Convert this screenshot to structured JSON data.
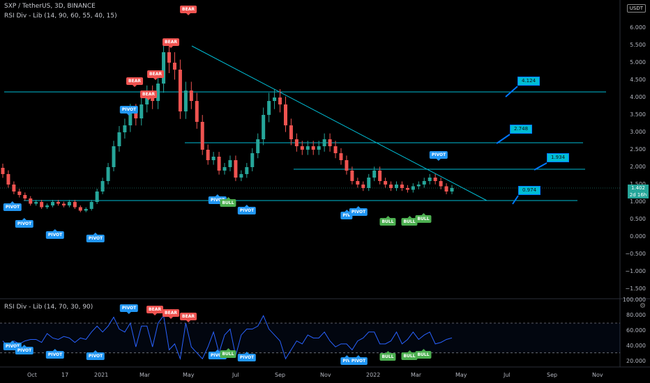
{
  "header": {
    "symbol_line": "SXP / TetherUS, 3D, BINANCE",
    "indicator_line": "RSI Div - Lib (14, 90, 60, 55, 40, 15)"
  },
  "rsi_header": "RSI Div - Lib (14, 70, 30, 90)",
  "currency_badge": "USDT",
  "price_axis": [
    "6.000",
    "5.500",
    "5.000",
    "4.500",
    "4.000",
    "3.500",
    "3.000",
    "2.500",
    "2.000",
    "1.500",
    "1.000",
    "0.500",
    "0.000",
    "−0.500",
    "−1.000",
    "−1.500"
  ],
  "rsi_axis": [
    "100.000",
    "80.000",
    "60.000",
    "40.000",
    "20.000"
  ],
  "time_axis": [
    "Oct",
    "17",
    "2021",
    "Mar",
    "May",
    "Jul",
    "Sep",
    "Nov",
    "2022",
    "Mar",
    "May",
    "Jul",
    "Sep",
    "Nov"
  ],
  "current_price": {
    "value": "1.402",
    "countdown": "2d 16h"
  },
  "level_labels": [
    "4.124",
    "2.748",
    "1.934",
    "0.974"
  ],
  "signal_labels": {
    "bear": "BEAR",
    "bull": "BULL",
    "pivot": "PIVOT",
    "pivot_short": "PIV"
  },
  "colors": {
    "bg": "#000000",
    "up": "#26a69a",
    "down": "#ef5350",
    "level": "#00bcd4",
    "rsi": "#2962ff"
  },
  "chart_data": {
    "type": "candlestick",
    "title": "SXP / TetherUS, 3D, BINANCE",
    "x_ticks": [
      "Oct",
      "17",
      "2021",
      "Mar",
      "May",
      "Jul",
      "Sep",
      "Nov",
      "2022",
      "Mar",
      "May",
      "Jul",
      "Sep",
      "Nov"
    ],
    "ylim": [
      -1.7,
      6.4
    ],
    "close_approx": [
      1.8,
      1.5,
      1.3,
      1.2,
      1.1,
      0.95,
      1.0,
      0.85,
      0.9,
      1.0,
      0.95,
      0.9,
      1.0,
      0.85,
      0.75,
      0.8,
      1.0,
      1.3,
      1.6,
      2.0,
      2.6,
      3.0,
      3.2,
      3.6,
      3.4,
      3.8,
      4.1,
      3.9,
      4.4,
      5.3,
      5.0,
      4.8,
      3.6,
      4.2,
      3.9,
      3.3,
      2.5,
      2.2,
      2.3,
      1.9,
      2.0,
      2.2,
      1.7,
      1.8,
      2.0,
      2.4,
      2.8,
      3.5,
      3.9,
      4.0,
      3.8,
      3.2,
      2.8,
      2.6,
      2.5,
      2.6,
      2.5,
      2.6,
      2.8,
      2.6,
      2.4,
      2.2,
      1.9,
      1.6,
      1.5,
      1.4,
      1.7,
      1.9,
      1.6,
      1.5,
      1.4,
      1.5,
      1.4,
      1.35,
      1.45,
      1.5,
      1.6,
      1.7,
      1.6,
      1.45,
      1.3,
      1.402
    ],
    "levels": [
      4.124,
      2.748,
      1.934,
      0.974
    ],
    "rsi": {
      "upper": 70,
      "lower": 30,
      "ylim": [
        10,
        100
      ]
    }
  }
}
